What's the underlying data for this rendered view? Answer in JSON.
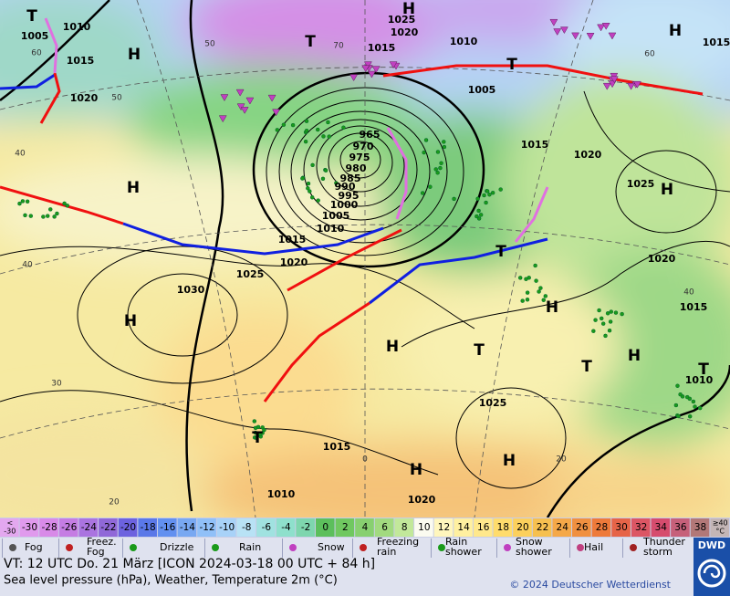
{
  "map": {
    "isobar_labels": [
      1005,
      1010,
      1015,
      1020,
      1025,
      1020,
      1015,
      1010,
      1005,
      965,
      970,
      975,
      980,
      985,
      990,
      995,
      1000,
      1005,
      1010,
      1015,
      1020,
      1025,
      1030,
      1015,
      1020,
      1025,
      1020,
      1015,
      1010,
      1025,
      1015,
      1010,
      1020,
      1015
    ],
    "pressure_centers": [
      "H",
      "T",
      "T",
      "H",
      "H",
      "H",
      "H",
      "H",
      "T",
      "H",
      "T",
      "H",
      "T",
      "H",
      "H",
      "T",
      "T",
      "T",
      "H"
    ],
    "isotherm_labels": [
      60,
      50,
      40,
      30,
      20,
      40,
      70,
      60,
      50,
      40,
      0,
      20
    ]
  },
  "color_scale": {
    "low": [
      "<",
      "-30"
    ],
    "steps": [
      -30,
      -28,
      -26,
      -24,
      -22,
      -20,
      -18,
      -16,
      -14,
      -12,
      -10,
      -8,
      -6,
      -4,
      -2,
      0,
      2,
      4,
      6,
      8,
      10,
      12,
      14,
      16,
      18,
      20,
      22,
      24,
      26,
      28,
      30,
      32,
      34,
      36,
      38
    ],
    "high": [
      "≥40",
      "°C"
    ]
  },
  "legend": [
    [
      "Fog"
    ],
    [
      "Freez.",
      "Fog"
    ],
    [
      "Drizzle"
    ],
    [
      "Rain"
    ],
    [
      "Snow"
    ],
    [
      "Freezing",
      "rain"
    ],
    [
      "Rain",
      "shower"
    ],
    [
      "Snow",
      "shower"
    ],
    [
      "Hail"
    ],
    [
      "Thunder",
      "storm"
    ]
  ],
  "footer": {
    "valid_time": "VT: 12 UTC Do.  21 März [ICON 2024-03-18  00 UTC + 84 h]",
    "description": "Sea level pressure (hPa), Weather, Temperature 2m (°C)",
    "copyright": "© 2024 Deutscher Wetterdienst",
    "logo": "DWD"
  }
}
